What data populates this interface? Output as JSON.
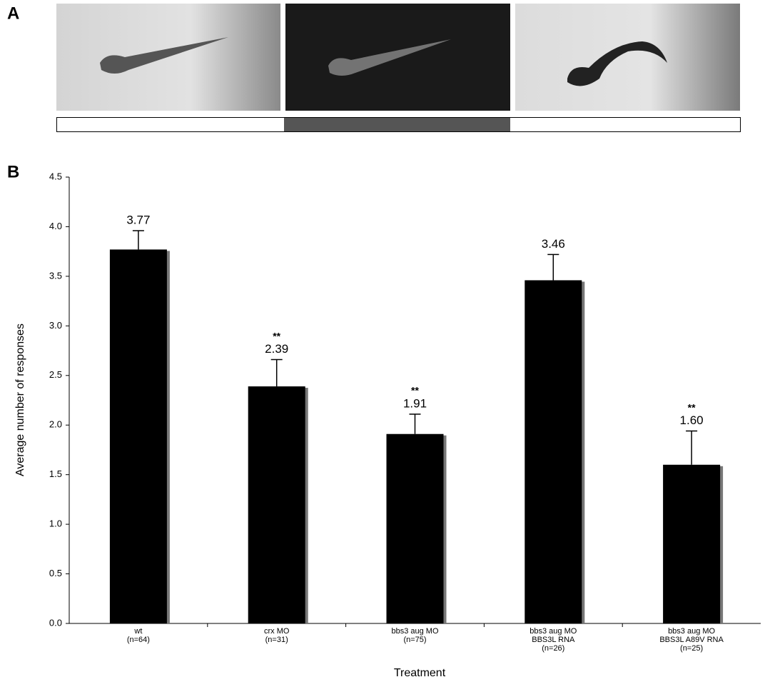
{
  "figure": {
    "panel_a_label": "A",
    "panel_b_label": "B"
  },
  "chart_data": {
    "type": "bar",
    "x_label": "Treatment",
    "y_label": "Average number of responses",
    "categories": [
      [
        "wt",
        "(n=64)"
      ],
      [
        "crx MO",
        "(n=31)"
      ],
      [
        "bbs3 aug MO",
        "(n=75)"
      ],
      [
        "bbs3 aug MO",
        "BBS3L RNA",
        "(n=26)"
      ],
      [
        "bbs3 aug MO",
        "BBS3L A89V RNA",
        "(n=25)"
      ]
    ],
    "values": [
      3.77,
      2.39,
      1.91,
      3.46,
      1.6
    ],
    "value_labels": [
      "3.77",
      "2.39",
      "1.91",
      "3.46",
      "1.60"
    ],
    "errors": [
      0.19,
      0.27,
      0.2,
      0.26,
      0.34
    ],
    "significance": [
      null,
      "**",
      "**",
      null,
      "**"
    ],
    "color": "#000000",
    "shadow_color": "#777777",
    "ylim": [
      0,
      4.5
    ],
    "yticks": [
      {
        "value": 0,
        "label": "0.0"
      },
      0.5,
      {
        "value": 1,
        "label": "1.0"
      },
      1.5,
      {
        "value": 2,
        "label": "2.0"
      },
      2.5,
      {
        "value": 3,
        "label": "3.0"
      },
      3.5,
      {
        "value": 4,
        "label": "4.0"
      },
      4.5
    ]
  }
}
